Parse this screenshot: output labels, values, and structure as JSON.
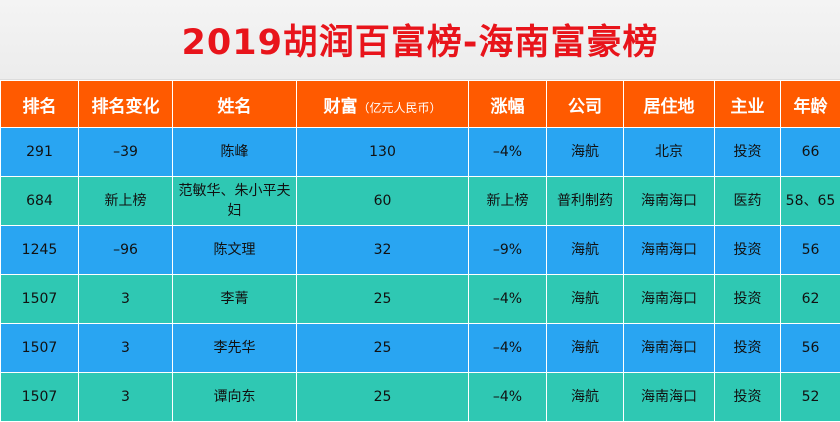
{
  "title": "2019胡润百富榜-海南富豪榜",
  "colors": {
    "title": "#e8141b",
    "header_bg": "#ff5a00",
    "row_blue": "#29a5f2",
    "row_teal": "#2fc8b3"
  },
  "table": {
    "headers": {
      "rank": "排名",
      "rank_change": "排名变化",
      "name": "姓名",
      "wealth": "财富",
      "wealth_unit": "（亿元人民币）",
      "change_pct": "涨幅",
      "company": "公司",
      "residence": "居住地",
      "industry": "主业",
      "age": "年龄"
    },
    "rows": [
      {
        "rank": "291",
        "rank_change": "–39",
        "name": "陈峰",
        "wealth": "130",
        "change_pct": "–4%",
        "company": "海航",
        "residence": "北京",
        "industry": "投资",
        "age": "66"
      },
      {
        "rank": "684",
        "rank_change": "新上榜",
        "name": "范敏华、朱小平夫妇",
        "wealth": "60",
        "change_pct": "新上榜",
        "company": "普利制药",
        "residence": "海南海口",
        "industry": "医药",
        "age": "58、65"
      },
      {
        "rank": "1245",
        "rank_change": "–96",
        "name": "陈文理",
        "wealth": "32",
        "change_pct": "–9%",
        "company": "海航",
        "residence": "海南海口",
        "industry": "投资",
        "age": "56"
      },
      {
        "rank": "1507",
        "rank_change": "3",
        "name": "李菁",
        "wealth": "25",
        "change_pct": "–4%",
        "company": "海航",
        "residence": "海南海口",
        "industry": "投资",
        "age": "62"
      },
      {
        "rank": "1507",
        "rank_change": "3",
        "name": "李先华",
        "wealth": "25",
        "change_pct": "–4%",
        "company": "海航",
        "residence": "海南海口",
        "industry": "投资",
        "age": "56"
      },
      {
        "rank": "1507",
        "rank_change": "3",
        "name": "谭向东",
        "wealth": "25",
        "change_pct": "–4%",
        "company": "海航",
        "residence": "海南海口",
        "industry": "投资",
        "age": "52"
      }
    ]
  }
}
